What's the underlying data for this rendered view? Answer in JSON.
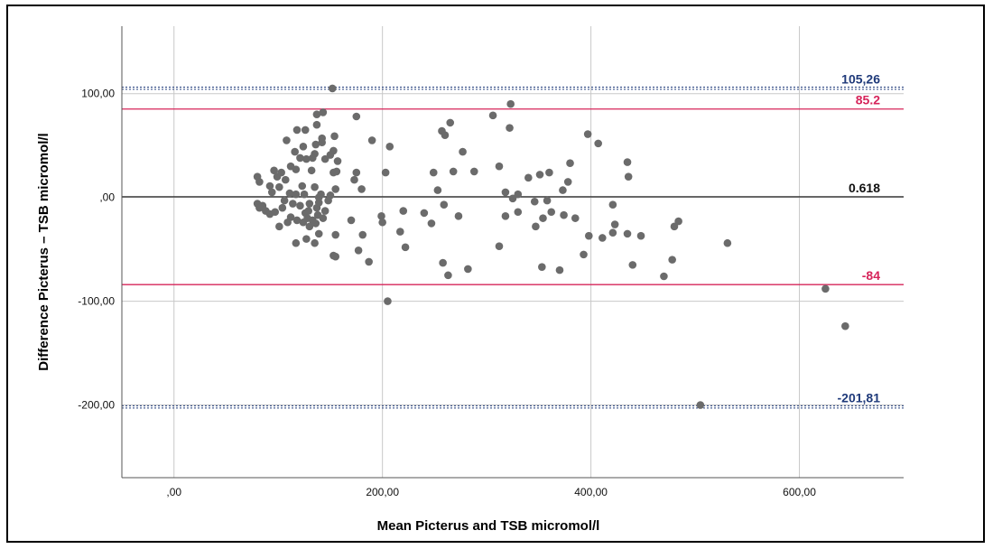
{
  "chart_data": {
    "type": "scatter",
    "title": "",
    "xlabel": "Mean Picterus and TSB micromol/l",
    "ylabel": "Difference Picterus – TSB micromol/l",
    "xlim": [
      -50,
      700
    ],
    "ylim": [
      -270,
      165
    ],
    "grid": true,
    "x_ticks": [
      {
        "value": 0,
        "label": ",00"
      },
      {
        "value": 200,
        "label": "200,00"
      },
      {
        "value": 400,
        "label": "400,00"
      },
      {
        "value": 600,
        "label": "600,00"
      }
    ],
    "y_ticks": [
      {
        "value": 100,
        "label": "100,00"
      },
      {
        "value": 0,
        "label": ",00"
      },
      {
        "value": -100,
        "label": "-100,00"
      },
      {
        "value": -200,
        "label": "-200,00"
      }
    ],
    "reference_lines": [
      {
        "name": "upper-dotted",
        "y": 105.26,
        "label": "105,26",
        "style": "dotted",
        "color": "#1f3a7a"
      },
      {
        "name": "upper-loa",
        "y": 85.2,
        "label": "85.2",
        "style": "solid",
        "color": "#d6245a"
      },
      {
        "name": "mean-diff",
        "y": 0.618,
        "label": "0.618",
        "style": "solid",
        "color": "#333333"
      },
      {
        "name": "lower-loa",
        "y": -84,
        "label": "-84",
        "style": "solid",
        "color": "#d6245a"
      },
      {
        "name": "lower-dotted",
        "y": -201.81,
        "label": "-201,81",
        "style": "dotted",
        "color": "#1f3a7a"
      }
    ],
    "colors": {
      "points": "#6b6b6b",
      "grid": "#c8c8c8"
    },
    "points": [
      [
        152,
        105
      ],
      [
        323,
        90
      ],
      [
        143,
        82
      ],
      [
        137,
        80
      ],
      [
        175,
        78
      ],
      [
        306,
        79
      ],
      [
        265,
        72
      ],
      [
        322,
        67
      ],
      [
        137,
        70
      ],
      [
        118,
        65
      ],
      [
        126,
        65
      ],
      [
        257,
        64
      ],
      [
        260,
        60
      ],
      [
        397,
        61
      ],
      [
        108,
        55
      ],
      [
        154,
        59
      ],
      [
        142,
        57
      ],
      [
        190,
        55
      ],
      [
        407,
        52
      ],
      [
        142,
        53
      ],
      [
        136,
        51
      ],
      [
        207,
        49
      ],
      [
        124,
        49
      ],
      [
        277,
        44
      ],
      [
        116,
        44
      ],
      [
        153,
        45
      ],
      [
        150,
        41
      ],
      [
        135,
        42
      ],
      [
        133,
        38
      ],
      [
        127,
        37
      ],
      [
        121,
        38
      ],
      [
        145,
        37
      ],
      [
        157,
        35
      ],
      [
        380,
        33
      ],
      [
        435,
        34
      ],
      [
        112,
        30
      ],
      [
        117,
        27
      ],
      [
        132,
        26
      ],
      [
        312,
        30
      ],
      [
        96,
        26
      ],
      [
        103,
        24
      ],
      [
        153,
        24
      ],
      [
        175,
        24
      ],
      [
        203,
        24
      ],
      [
        249,
        24
      ],
      [
        268,
        25
      ],
      [
        288,
        25
      ],
      [
        156,
        25
      ],
      [
        360,
        24
      ],
      [
        351,
        22
      ],
      [
        80,
        20
      ],
      [
        99,
        20
      ],
      [
        107,
        17
      ],
      [
        340,
        19
      ],
      [
        436,
        20
      ],
      [
        378,
        15
      ],
      [
        173,
        17
      ],
      [
        82,
        15
      ],
      [
        92,
        11
      ],
      [
        101,
        10
      ],
      [
        123,
        11
      ],
      [
        135,
        10
      ],
      [
        155,
        8
      ],
      [
        180,
        8
      ],
      [
        253,
        7
      ],
      [
        373,
        7
      ],
      [
        111,
        4
      ],
      [
        117,
        3
      ],
      [
        125,
        3
      ],
      [
        141,
        3
      ],
      [
        150,
        2
      ],
      [
        94,
        5
      ],
      [
        330,
        3
      ],
      [
        318,
        5
      ],
      [
        325,
        -1
      ],
      [
        346,
        -4
      ],
      [
        358,
        -3
      ],
      [
        421,
        -7
      ],
      [
        80,
        -6
      ],
      [
        82,
        -10
      ],
      [
        85,
        -8
      ],
      [
        88,
        -13
      ],
      [
        92,
        -16
      ],
      [
        97,
        -14
      ],
      [
        104,
        -10
      ],
      [
        114,
        -6
      ],
      [
        121,
        -8
      ],
      [
        130,
        -6
      ],
      [
        137,
        -10
      ],
      [
        145,
        -13
      ],
      [
        126,
        -15
      ],
      [
        138,
        -17
      ],
      [
        112,
        -19
      ],
      [
        118,
        -22
      ],
      [
        124,
        -24
      ],
      [
        130,
        -28
      ],
      [
        136,
        -25
      ],
      [
        133,
        -22
      ],
      [
        128,
        -20
      ],
      [
        220,
        -13
      ],
      [
        240,
        -15
      ],
      [
        199,
        -18
      ],
      [
        330,
        -14
      ],
      [
        362,
        -14
      ],
      [
        374,
        -17
      ],
      [
        385,
        -20
      ],
      [
        354,
        -20
      ],
      [
        318,
        -18
      ],
      [
        273,
        -18
      ],
      [
        259,
        -7
      ],
      [
        247,
        -25
      ],
      [
        200,
        -24
      ],
      [
        217,
        -33
      ],
      [
        181,
        -36
      ],
      [
        170,
        -22
      ],
      [
        155,
        -36
      ],
      [
        139,
        -35
      ],
      [
        127,
        -40
      ],
      [
        135,
        -44
      ],
      [
        117,
        -44
      ],
      [
        222,
        -48
      ],
      [
        177,
        -51
      ],
      [
        187,
        -62
      ],
      [
        153,
        -56
      ],
      [
        155,
        -57
      ],
      [
        258,
        -63
      ],
      [
        263,
        -75
      ],
      [
        282,
        -69
      ],
      [
        312,
        -47
      ],
      [
        347,
        -28
      ],
      [
        398,
        -37
      ],
      [
        411,
        -39
      ],
      [
        421,
        -34
      ],
      [
        423,
        -26
      ],
      [
        435,
        -35
      ],
      [
        448,
        -37
      ],
      [
        480,
        -28
      ],
      [
        484,
        -23
      ],
      [
        531,
        -44
      ],
      [
        440,
        -65
      ],
      [
        478,
        -60
      ],
      [
        470,
        -76
      ],
      [
        393,
        -55
      ],
      [
        370,
        -70
      ],
      [
        353,
        -67
      ],
      [
        205,
        -100
      ],
      [
        505,
        -200
      ],
      [
        625,
        -88
      ],
      [
        644,
        -124
      ],
      [
        101,
        -28
      ],
      [
        109,
        -24
      ],
      [
        148,
        -3
      ],
      [
        143,
        -20
      ],
      [
        139,
        -5
      ],
      [
        129,
        -13
      ],
      [
        139,
        0
      ],
      [
        106,
        -3
      ]
    ]
  }
}
